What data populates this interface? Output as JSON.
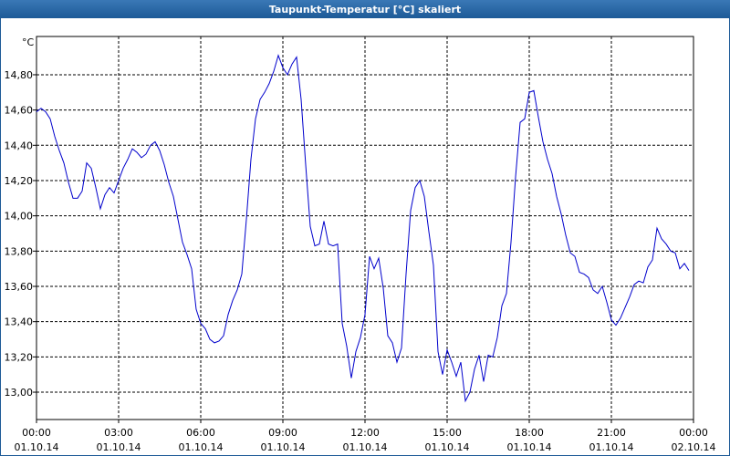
{
  "chart_data": {
    "type": "line",
    "title": "Taupunkt-Temperatur [°C] skaliert",
    "y_unit": "°C",
    "xlim": [
      0,
      24
    ],
    "xticks": [
      {
        "value": 0,
        "label": "00:00",
        "date": "01.10.14"
      },
      {
        "value": 3,
        "label": "03:00",
        "date": "01.10.14"
      },
      {
        "value": 6,
        "label": "06:00",
        "date": "01.10.14"
      },
      {
        "value": 9,
        "label": "09:00",
        "date": "01.10.14"
      },
      {
        "value": 12,
        "label": "12:00",
        "date": "01.10.14"
      },
      {
        "value": 15,
        "label": "15:00",
        "date": "01.10.14"
      },
      {
        "value": 18,
        "label": "18:00",
        "date": "01.10.14"
      },
      {
        "value": 21,
        "label": "21:00",
        "date": "01.10.14"
      },
      {
        "value": 24,
        "label": "00:00",
        "date": "02.10.14"
      }
    ],
    "ylim": [
      12.845,
      15.017
    ],
    "yticks": [
      {
        "value": 13.0,
        "label": "13,00"
      },
      {
        "value": 13.2,
        "label": "13,20"
      },
      {
        "value": 13.4,
        "label": "13,40"
      },
      {
        "value": 13.6,
        "label": "13,60"
      },
      {
        "value": 13.8,
        "label": "13,80"
      },
      {
        "value": 14.0,
        "label": "14,00"
      },
      {
        "value": 14.2,
        "label": "14,20"
      },
      {
        "value": 14.4,
        "label": "14,40"
      },
      {
        "value": 14.6,
        "label": "14,60"
      },
      {
        "value": 14.8,
        "label": "14,80"
      }
    ],
    "grid": true,
    "x": [
      0,
      0.167,
      0.333,
      0.5,
      0.667,
      0.833,
      1,
      1.167,
      1.333,
      1.5,
      1.667,
      1.833,
      2,
      2.167,
      2.333,
      2.5,
      2.667,
      2.833,
      3,
      3.167,
      3.333,
      3.5,
      3.667,
      3.833,
      4,
      4.167,
      4.333,
      4.5,
      4.667,
      4.833,
      5,
      5.167,
      5.333,
      5.5,
      5.667,
      5.833,
      6,
      6.167,
      6.333,
      6.5,
      6.667,
      6.833,
      7,
      7.167,
      7.333,
      7.5,
      7.667,
      7.833,
      8,
      8.167,
      8.333,
      8.5,
      8.667,
      8.833,
      9,
      9.167,
      9.333,
      9.5,
      9.667,
      9.833,
      10,
      10.167,
      10.333,
      10.5,
      10.667,
      10.833,
      11,
      11.167,
      11.333,
      11.5,
      11.667,
      11.833,
      12,
      12.167,
      12.333,
      12.5,
      12.667,
      12.833,
      13,
      13.167,
      13.333,
      13.5,
      13.667,
      13.833,
      14,
      14.167,
      14.333,
      14.5,
      14.667,
      14.833,
      15,
      15.167,
      15.333,
      15.5,
      15.667,
      15.833,
      16,
      16.167,
      16.333,
      16.5,
      16.667,
      16.833,
      17,
      17.167,
      17.333,
      17.5,
      17.667,
      17.833,
      18,
      18.167,
      18.333,
      18.5,
      18.667,
      18.833,
      19,
      19.167,
      19.333,
      19.5,
      19.667,
      19.833,
      20,
      20.167,
      20.333,
      20.5,
      20.667,
      20.833,
      21,
      21.167,
      21.333,
      21.5,
      21.667,
      21.833,
      22,
      22.167,
      22.333,
      22.5,
      22.667,
      22.833,
      23,
      23.167,
      23.333,
      23.5,
      23.667,
      23.833
    ],
    "series": [
      {
        "name": "Taupunkt-Temperatur",
        "color": "#0000cc",
        "values": [
          14.59,
          14.61,
          14.59,
          14.55,
          14.45,
          14.37,
          14.3,
          14.19,
          14.1,
          14.1,
          14.14,
          14.3,
          14.27,
          14.16,
          14.04,
          14.12,
          14.16,
          14.13,
          14.2,
          14.27,
          14.32,
          14.38,
          14.36,
          14.33,
          14.35,
          14.4,
          14.42,
          14.37,
          14.29,
          14.19,
          14.11,
          13.98,
          13.85,
          13.78,
          13.7,
          13.47,
          13.39,
          13.36,
          13.3,
          13.28,
          13.29,
          13.32,
          13.44,
          13.52,
          13.58,
          13.67,
          13.98,
          14.32,
          14.55,
          14.66,
          14.7,
          14.75,
          14.82,
          14.91,
          14.84,
          14.8,
          14.86,
          14.9,
          14.66,
          14.29,
          13.94,
          13.83,
          13.84,
          13.97,
          13.84,
          13.83,
          13.84,
          13.39,
          13.26,
          13.08,
          13.23,
          13.31,
          13.44,
          13.77,
          13.7,
          13.76,
          13.59,
          13.32,
          13.28,
          13.17,
          13.25,
          13.67,
          14.03,
          14.16,
          14.2,
          14.11,
          13.91,
          13.72,
          13.23,
          13.1,
          13.24,
          13.17,
          13.09,
          13.17,
          12.95,
          13.0,
          13.13,
          13.21,
          13.06,
          13.21,
          13.2,
          13.31,
          13.49,
          13.56,
          13.85,
          14.22,
          14.53,
          14.55,
          14.7,
          14.71,
          14.56,
          14.42,
          14.32,
          14.24,
          14.11,
          14.01,
          13.89,
          13.79,
          13.77,
          13.68,
          13.67,
          13.65,
          13.58,
          13.56,
          13.6,
          13.51,
          13.41,
          13.38,
          13.42,
          13.48,
          13.54,
          13.61,
          13.63,
          13.62,
          13.71,
          13.75,
          13.93,
          13.87,
          13.84,
          13.8,
          13.79,
          13.7,
          13.73,
          13.69
        ]
      }
    ]
  }
}
